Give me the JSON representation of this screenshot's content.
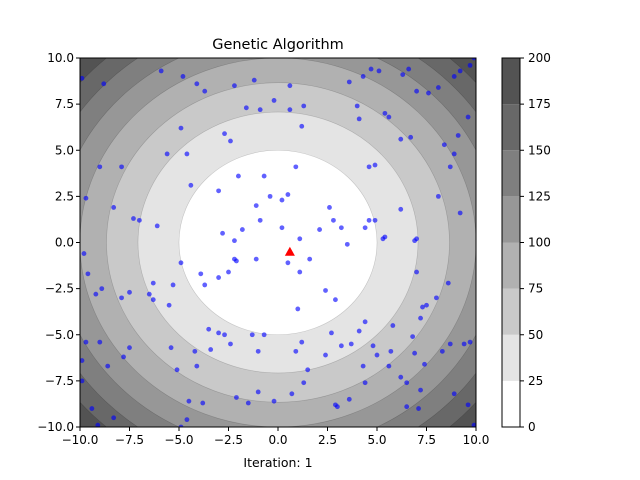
{
  "chart_data": {
    "type": "scatter",
    "title": "Genetic Algorithm",
    "xlabel": "Iteration: 1",
    "ylabel": "",
    "xlim": [
      -10,
      10
    ],
    "ylim": [
      -10,
      10
    ],
    "x_ticks": [
      -10,
      -7.5,
      -5,
      -2.5,
      0,
      2.5,
      5,
      7.5,
      10
    ],
    "y_ticks": [
      -10,
      -7.5,
      -5,
      -2.5,
      0,
      2.5,
      5,
      7.5,
      10
    ],
    "x_tick_labels": [
      "−10.0",
      "−7.5",
      "−5.0",
      "−2.5",
      "0.0",
      "2.5",
      "5.0",
      "7.5",
      "10.0"
    ],
    "y_tick_labels": [
      "−10.0",
      "−7.5",
      "−5.0",
      "−2.5",
      "0.0",
      "2.5",
      "5.0",
      "7.5",
      "10.0"
    ],
    "background": {
      "type": "contourf",
      "function": "x^2 + y^2",
      "levels": [
        0,
        25,
        50,
        75,
        100,
        125,
        150,
        175,
        200
      ],
      "colors": [
        "#ffffff",
        "#e4e4e4",
        "#c9c9c9",
        "#b1b1b1",
        "#979797",
        "#7f7f7f",
        "#686868",
        "#535353"
      ]
    },
    "colorbar": {
      "ticks": [
        0,
        25,
        50,
        75,
        100,
        125,
        150,
        175,
        200
      ],
      "tick_labels": [
        "0",
        "25",
        "50",
        "75",
        "100",
        "125",
        "150",
        "175",
        "200"
      ]
    },
    "colors": {
      "population": "#0000ff",
      "best": "#ff0000"
    },
    "grid": false,
    "series": [
      {
        "marker": "circle",
        "points": [
          [
            -9.9,
            8.9
          ],
          [
            -8.8,
            8.6
          ],
          [
            -5.9,
            9.3
          ],
          [
            -4.8,
            9.0
          ],
          [
            -4.1,
            8.6
          ],
          [
            -3.7,
            8.2
          ],
          [
            -1.2,
            8.8
          ],
          [
            0.6,
            8.5
          ],
          [
            3.6,
            8.7
          ],
          [
            4.3,
            9.0
          ],
          [
            4.7,
            9.4
          ],
          [
            5.1,
            9.3
          ],
          [
            6.3,
            9.1
          ],
          [
            6.6,
            9.4
          ],
          [
            7.0,
            8.2
          ],
          [
            7.6,
            8.1
          ],
          [
            8.9,
            9.0
          ],
          [
            9.2,
            9.3
          ],
          [
            9.7,
            9.6
          ],
          [
            9.9,
            10.0
          ],
          [
            8.1,
            8.4
          ],
          [
            9.6,
            6.8
          ],
          [
            9.1,
            5.8
          ],
          [
            8.4,
            5.3
          ],
          [
            8.9,
            4.8
          ],
          [
            8.7,
            4.1
          ],
          [
            6.7,
            5.7
          ],
          [
            6.2,
            5.6
          ],
          [
            5.4,
            7.0
          ],
          [
            5.6,
            6.8
          ],
          [
            4.1,
            6.7
          ],
          [
            4.0,
            7.4
          ],
          [
            1.3,
            7.4
          ],
          [
            -0.2,
            7.7
          ],
          [
            -0.9,
            7.2
          ],
          [
            -1.6,
            7.3
          ],
          [
            0.6,
            7.2
          ],
          [
            -2.2,
            8.5
          ],
          [
            1.2,
            6.3
          ],
          [
            -2.7,
            5.9
          ],
          [
            -2.4,
            5.5
          ],
          [
            -4.9,
            6.2
          ],
          [
            -4.6,
            4.8
          ],
          [
            -5.6,
            4.8
          ],
          [
            -9.0,
            4.1
          ],
          [
            -7.9,
            4.1
          ],
          [
            -7.3,
            1.3
          ],
          [
            -8.3,
            1.9
          ],
          [
            -9.7,
            2.4
          ],
          [
            -6.1,
            0.9
          ],
          [
            -7.0,
            1.2
          ],
          [
            -4.4,
            3.1
          ],
          [
            -3.0,
            2.8
          ],
          [
            -1.1,
            2.0
          ],
          [
            0.5,
            2.6
          ],
          [
            0.2,
            2.3
          ],
          [
            0.9,
            4.1
          ],
          [
            -0.7,
            3.6
          ],
          [
            -2.0,
            3.6
          ],
          [
            -0.4,
            2.5
          ],
          [
            -0.9,
            1.2
          ],
          [
            -1.8,
            0.7
          ],
          [
            -2.2,
            0.1
          ],
          [
            -2.8,
            0.5
          ],
          [
            0.2,
            0.8
          ],
          [
            1.1,
            0.2
          ],
          [
            2.1,
            0.7
          ],
          [
            2.6,
            1.9
          ],
          [
            2.8,
            1.2
          ],
          [
            3.2,
            0.8
          ],
          [
            3.5,
            -0.1
          ],
          [
            4.4,
            0.8
          ],
          [
            4.6,
            1.2
          ],
          [
            4.9,
            1.2
          ],
          [
            5.3,
            0.2
          ],
          [
            5.4,
            0.3
          ],
          [
            6.2,
            1.8
          ],
          [
            6.9,
            0.1
          ],
          [
            7.0,
            0.2
          ],
          [
            8.1,
            2.5
          ],
          [
            9.2,
            1.6
          ],
          [
            4.6,
            4.1
          ],
          [
            4.9,
            4.2
          ],
          [
            1.6,
            -0.9
          ],
          [
            1.1,
            -1.6
          ],
          [
            0.5,
            -1.1
          ],
          [
            -1.1,
            -0.9
          ],
          [
            -2.2,
            -0.9
          ],
          [
            -2.1,
            -1.0
          ],
          [
            -2.5,
            -1.6
          ],
          [
            -3.0,
            -1.9
          ],
          [
            -3.7,
            -2.3
          ],
          [
            -3.9,
            -1.7
          ],
          [
            -4.9,
            -1.1
          ],
          [
            -5.3,
            -2.3
          ],
          [
            -6.3,
            -2.2
          ],
          [
            -7.5,
            -2.7
          ],
          [
            -7.9,
            -3.0
          ],
          [
            -8.9,
            -2.5
          ],
          [
            -9.2,
            -2.8
          ],
          [
            -9.6,
            -1.7
          ],
          [
            -9.8,
            -0.6
          ],
          [
            -6.5,
            -2.8
          ],
          [
            -6.3,
            -3.1
          ],
          [
            -5.5,
            -3.4
          ],
          [
            -3.5,
            -4.7
          ],
          [
            -3.0,
            -4.9
          ],
          [
            -2.7,
            -5.0
          ],
          [
            -1.3,
            -5.0
          ],
          [
            -0.7,
            -5.0
          ],
          [
            1.0,
            -3.6
          ],
          [
            2.4,
            -2.6
          ],
          [
            2.9,
            -3.1
          ],
          [
            4.4,
            -4.3
          ],
          [
            4.1,
            -4.8
          ],
          [
            5.8,
            -4.5
          ],
          [
            6.8,
            -5.1
          ],
          [
            7.2,
            -4.1
          ],
          [
            7.3,
            -3.5
          ],
          [
            7.5,
            -3.4
          ],
          [
            7.0,
            -1.6
          ],
          [
            8.0,
            -3.0
          ],
          [
            8.6,
            -2.2
          ],
          [
            2.7,
            -4.9
          ],
          [
            3.2,
            -5.6
          ],
          [
            3.7,
            -5.5
          ],
          [
            1.2,
            -5.4
          ],
          [
            0.9,
            -5.9
          ],
          [
            -1.0,
            -5.9
          ],
          [
            -2.4,
            -5.5
          ],
          [
            -3.4,
            -5.8
          ],
          [
            -5.4,
            -5.7
          ],
          [
            -4.2,
            -5.9
          ],
          [
            -4.1,
            -6.7
          ],
          [
            -5.1,
            -6.9
          ],
          [
            -7.5,
            -5.7
          ],
          [
            -7.8,
            -6.2
          ],
          [
            -9.0,
            -5.4
          ],
          [
            -9.7,
            -5.4
          ],
          [
            -9.9,
            -6.4
          ],
          [
            -9.9,
            -7.5
          ],
          [
            -8.6,
            -6.7
          ],
          [
            -9.4,
            -9.0
          ],
          [
            -8.3,
            -9.5
          ],
          [
            -9.1,
            -9.9
          ],
          [
            -4.9,
            -10.0
          ],
          [
            -4.6,
            -9.6
          ],
          [
            -4.5,
            -8.6
          ],
          [
            -3.8,
            -8.7
          ],
          [
            -2.1,
            -8.4
          ],
          [
            -1.5,
            -8.7
          ],
          [
            -1.0,
            -8.1
          ],
          [
            -0.2,
            -8.6
          ],
          [
            0.7,
            -8.2
          ],
          [
            1.3,
            -7.6
          ],
          [
            1.5,
            -6.9
          ],
          [
            2.4,
            -6.1
          ],
          [
            2.9,
            -8.8
          ],
          [
            3.0,
            -8.9
          ],
          [
            3.6,
            -8.5
          ],
          [
            4.4,
            -7.6
          ],
          [
            4.3,
            -6.7
          ],
          [
            4.8,
            -5.6
          ],
          [
            5.0,
            -6.1
          ],
          [
            5.6,
            -6.7
          ],
          [
            6.2,
            -7.3
          ],
          [
            6.5,
            -7.6
          ],
          [
            6.5,
            -8.9
          ],
          [
            7.1,
            -9.0
          ],
          [
            7.2,
            -8.0
          ],
          [
            8.9,
            -8.2
          ],
          [
            9.6,
            -8.8
          ],
          [
            9.9,
            -9.9
          ],
          [
            9.4,
            -5.5
          ],
          [
            9.7,
            -5.4
          ],
          [
            8.7,
            -5.5
          ],
          [
            8.3,
            -5.9
          ],
          [
            7.4,
            -6.6
          ],
          [
            6.9,
            -6.0
          ],
          [
            5.7,
            -5.9
          ]
        ]
      },
      {
        "marker": "triangle",
        "points": [
          [
            0.6,
            -0.5
          ]
        ]
      }
    ]
  }
}
